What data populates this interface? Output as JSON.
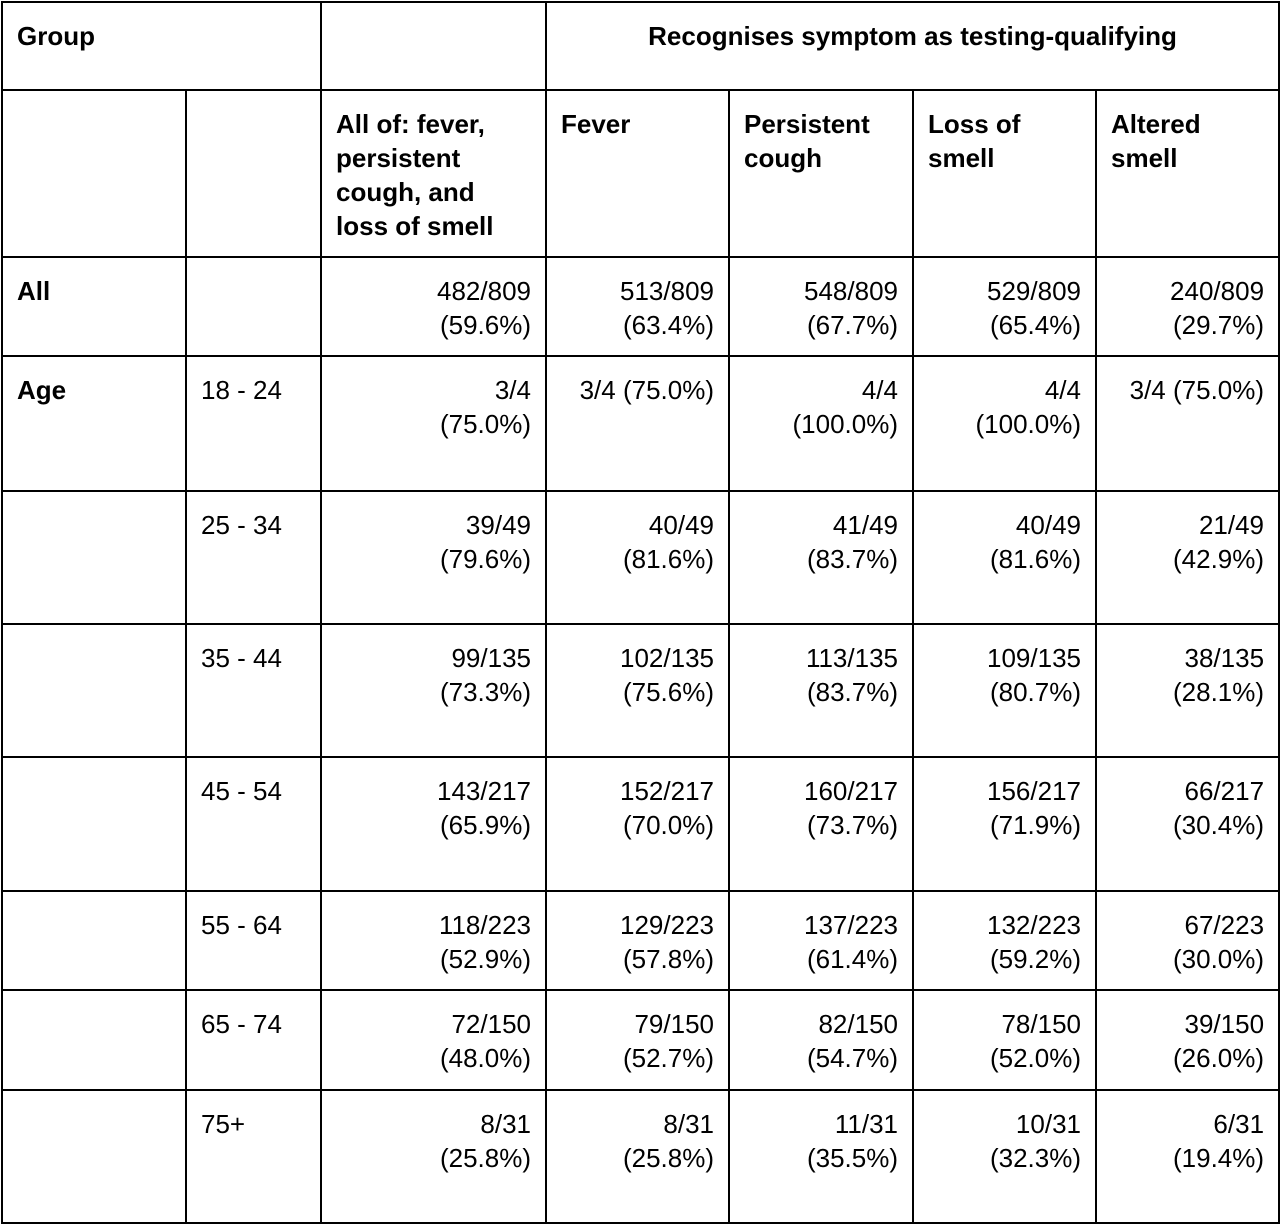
{
  "header": {
    "group": "Group",
    "span_title": "Recognises symptom as testing-qualifying"
  },
  "columns": {
    "all_of": [
      "All of: fever,",
      "persistent",
      "cough, and",
      "loss of smell"
    ],
    "fever": [
      "Fever"
    ],
    "persistent_cough": [
      "Persistent",
      "cough"
    ],
    "loss_of_smell": [
      "Loss of",
      "smell"
    ],
    "altered_smell": [
      "Altered",
      "smell"
    ]
  },
  "rows": [
    {
      "group": "All",
      "sub": "",
      "cells": [
        [
          "482/809",
          "(59.6%)"
        ],
        [
          "513/809",
          "(63.4%)"
        ],
        [
          "548/809",
          "(67.7%)"
        ],
        [
          "529/809",
          "(65.4%)"
        ],
        [
          "240/809",
          "(29.7%)"
        ]
      ]
    },
    {
      "group": "Age",
      "sub": "18 - 24",
      "cells": [
        [
          "3/4",
          "(75.0%)"
        ],
        [
          "3/4 (75.0%)"
        ],
        [
          "4/4",
          "(100.0%)"
        ],
        [
          "4/4",
          "(100.0%)"
        ],
        [
          "3/4 (75.0%)"
        ]
      ]
    },
    {
      "group": "",
      "sub": "25 - 34",
      "cells": [
        [
          "39/49",
          "(79.6%)"
        ],
        [
          "40/49",
          "(81.6%)"
        ],
        [
          "41/49",
          "(83.7%)"
        ],
        [
          "40/49",
          "(81.6%)"
        ],
        [
          "21/49",
          "(42.9%)"
        ]
      ]
    },
    {
      "group": "",
      "sub": "35 - 44",
      "cells": [
        [
          "99/135",
          "(73.3%)"
        ],
        [
          "102/135",
          "(75.6%)"
        ],
        [
          "113/135",
          "(83.7%)"
        ],
        [
          "109/135",
          "(80.7%)"
        ],
        [
          "38/135",
          "(28.1%)"
        ]
      ]
    },
    {
      "group": "",
      "sub": "45 - 54",
      "cells": [
        [
          "143/217",
          "(65.9%)"
        ],
        [
          "152/217",
          "(70.0%)"
        ],
        [
          "160/217",
          "(73.7%)"
        ],
        [
          "156/217",
          "(71.9%)"
        ],
        [
          "66/217",
          "(30.4%)"
        ]
      ]
    },
    {
      "group": "",
      "sub": "55 - 64",
      "cells": [
        [
          "118/223",
          "(52.9%)"
        ],
        [
          "129/223",
          "(57.8%)"
        ],
        [
          "137/223",
          "(61.4%)"
        ],
        [
          "132/223",
          "(59.2%)"
        ],
        [
          "67/223",
          "(30.0%)"
        ]
      ]
    },
    {
      "group": "",
      "sub": "65 - 74",
      "cells": [
        [
          "72/150",
          "(48.0%)"
        ],
        [
          "79/150",
          "(52.7%)"
        ],
        [
          "82/150",
          "(54.7%)"
        ],
        [
          "78/150",
          "(52.0%)"
        ],
        [
          "39/150",
          "(26.0%)"
        ]
      ]
    },
    {
      "group": "",
      "sub": "75+",
      "cells": [
        [
          "8/31",
          "(25.8%)"
        ],
        [
          "8/31",
          "(25.8%)"
        ],
        [
          "11/31",
          "(35.5%)"
        ],
        [
          "10/31",
          "(32.3%)"
        ],
        [
          "6/31",
          "(19.4%)"
        ]
      ]
    }
  ]
}
